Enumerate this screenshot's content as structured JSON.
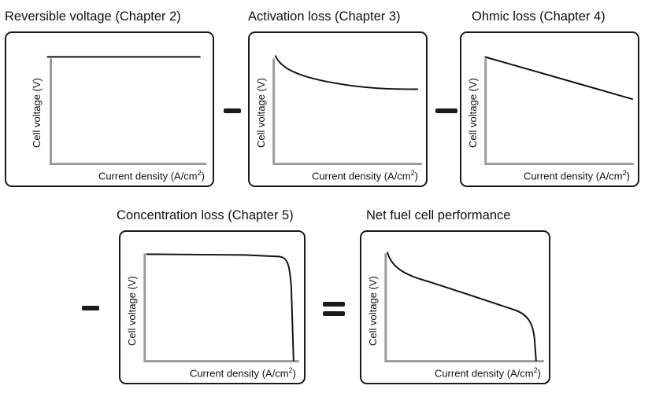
{
  "panels": [
    {
      "title": "Reversible voltage (Chapter 2)",
      "ylabel": "Cell voltage (V)",
      "xlabel": "Current density (A/cm",
      "xlabel_sup": "2",
      "xlabel_end": ")",
      "curve": "constant"
    },
    {
      "title": "Activation loss (Chapter 3)",
      "ylabel": "Cell voltage (V)",
      "xlabel": "Current density (A/cm",
      "xlabel_sup": "2",
      "xlabel_end": ")",
      "curve": "activation"
    },
    {
      "title": "Ohmic loss (Chapter 4)",
      "ylabel": "Cell voltage (V)",
      "xlabel": "Current density (A/cm",
      "xlabel_sup": "2",
      "xlabel_end": ")",
      "curve": "ohmic"
    },
    {
      "title": "Concentration loss (Chapter 5)",
      "ylabel": "Cell voltage (V)",
      "xlabel": "Current density (A/cm",
      "xlabel_sup": "2",
      "xlabel_end": ")",
      "curve": "concentration"
    },
    {
      "title": "Net fuel cell performance",
      "ylabel": "Cell voltage (V)",
      "xlabel": "Current density (A/cm",
      "xlabel_sup": "2",
      "xlabel_end": ")",
      "curve": "net"
    }
  ],
  "operators": [
    "minus",
    "minus",
    "minus",
    "equals"
  ],
  "colors": {
    "axis": "#9a9a9a",
    "curve": "#111111",
    "border": "#1a1a1a"
  }
}
